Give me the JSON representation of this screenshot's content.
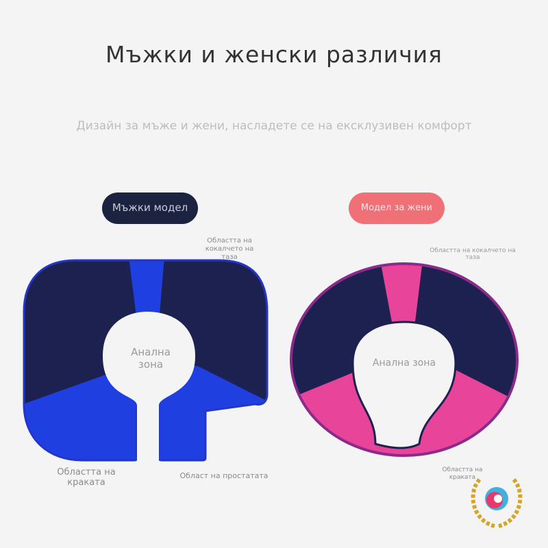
{
  "title": "Мъжки и женски различия",
  "subtitle": "Дизайн за мъже и жени, насладете се на ексклузивен комфорт",
  "male": {
    "label": "Мъжки модел",
    "tailbone": "Областта на кокалчето на таза",
    "anal": "Анална зона",
    "legs": "Областта на краката",
    "prostate": "Област на простатата"
  },
  "female": {
    "label": "Модел за жени",
    "tailbone": "Областта на кокалчето на таза",
    "anal": "Анална зона",
    "legs": "Областта на краката"
  },
  "colors": {
    "navy": "#1c2150",
    "blue": "#1f3fe0",
    "pink": "#e8449a",
    "pill_dark": "#1b2340",
    "pill_pink": "#f07078"
  }
}
